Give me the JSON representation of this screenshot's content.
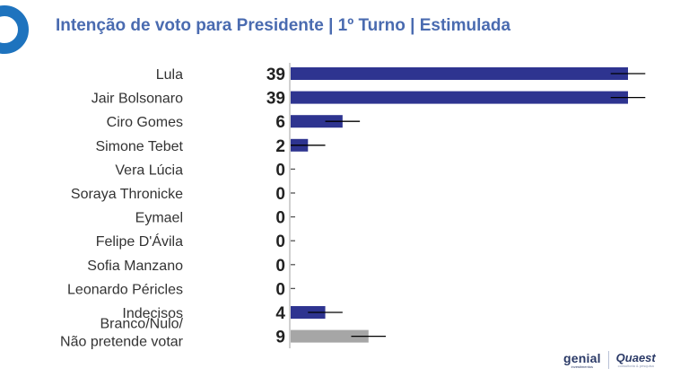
{
  "header": {
    "title": "Intenção de voto para Presidente | 1º Turno | Estimulada"
  },
  "chart_data": {
    "type": "bar",
    "orientation": "horizontal",
    "title": "Intenção de voto para Presidente | 1º Turno | Estimulada",
    "categories": [
      "Lula",
      "Jair Bolsonaro",
      "Ciro Gomes",
      "Simone Tebet",
      "Vera Lúcia",
      "Soraya Thronicke",
      "Eymael",
      "Felipe D'Ávila",
      "Sofia Manzano",
      "Leonardo Péricles",
      "Indecisos",
      "Branco/Nulo/ Não pretende votar"
    ],
    "values": [
      39,
      39,
      6,
      2,
      0,
      0,
      0,
      0,
      0,
      0,
      4,
      9
    ],
    "error_margin": 2,
    "colors": {
      "bar": "#2e3490",
      "highlight_bar": "#a6a6a6",
      "error_bar": "#000000",
      "label": "#333333",
      "value": "#222222"
    },
    "highlight_categories": [
      "Branco/Nulo/ Não pretende votar"
    ],
    "xlim": [
      0,
      39
    ],
    "grid": false,
    "legend": "none"
  },
  "brands": {
    "genial": "genial",
    "genial_sub": "investimentos",
    "quaest": "Quaest",
    "quaest_sub": "consultoria & pesquisa"
  }
}
